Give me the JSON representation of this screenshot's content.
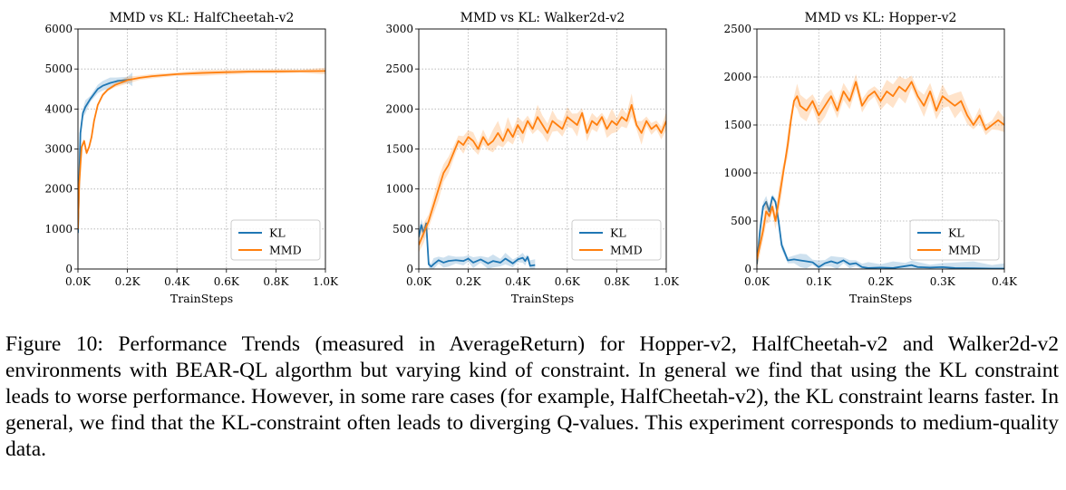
{
  "caption": "Figure 10: Performance Trends (measured in AverageReturn) for Hopper-v2, HalfCheetah-v2 and Walker2d-v2 environments with BEAR-QL algorthm but varying kind of constraint. In general we find that using the KL constraint leads to worse performance. However, in some rare cases (for example, HalfCheetah-v2), the KL constraint learns faster. In general, we find that the KL-constraint often leads to diverging Q-values. This experiment corresponds to medium-quality data.",
  "colors": {
    "kl": "#1f77b4",
    "mmd": "#ff7f0e"
  },
  "chart_data": [
    {
      "type": "line",
      "title": "MMD vs KL: HalfCheetah-v2",
      "xlabel": "TrainSteps",
      "ylabel": "",
      "xlim": [
        0,
        1.0
      ],
      "ylim": [
        0,
        6000
      ],
      "xticks": [
        0,
        0.2,
        0.4,
        0.6,
        0.8,
        1.0
      ],
      "xtick_labels": [
        "0.0K",
        "0.2K",
        "0.4K",
        "0.6K",
        "0.8K",
        "1.0K"
      ],
      "yticks": [
        0,
        1000,
        2000,
        3000,
        4000,
        5000,
        6000
      ],
      "ytick_labels": [
        "0",
        "1000",
        "2000",
        "3000",
        "4000",
        "5000",
        "6000"
      ],
      "grid": true,
      "legend": "lower-right",
      "series": [
        {
          "name": "KL",
          "color": "#1f77b4",
          "x": [
            0,
            0.005,
            0.01,
            0.02,
            0.03,
            0.05,
            0.08,
            0.1,
            0.13,
            0.16,
            0.2,
            0.22
          ],
          "y": [
            900,
            2200,
            3400,
            3900,
            4050,
            4250,
            4500,
            4580,
            4650,
            4700,
            4730,
            4740
          ]
        },
        {
          "name": "MMD",
          "color": "#ff7f0e",
          "x": [
            0,
            0.005,
            0.01,
            0.015,
            0.025,
            0.035,
            0.045,
            0.055,
            0.065,
            0.08,
            0.1,
            0.12,
            0.15,
            0.2,
            0.25,
            0.3,
            0.4,
            0.5,
            0.6,
            0.7,
            0.8,
            0.9,
            1.0
          ],
          "y": [
            1000,
            2100,
            2600,
            3050,
            3200,
            2900,
            3050,
            3300,
            3700,
            4100,
            4350,
            4480,
            4600,
            4720,
            4780,
            4820,
            4870,
            4900,
            4920,
            4935,
            4940,
            4945,
            4950
          ]
        }
      ]
    },
    {
      "type": "line",
      "title": "MMD vs KL: Walker2d-v2",
      "xlabel": "TrainSteps",
      "ylabel": "",
      "xlim": [
        0,
        1.0
      ],
      "ylim": [
        0,
        3000
      ],
      "xticks": [
        0,
        0.2,
        0.4,
        0.6,
        0.8,
        1.0
      ],
      "xtick_labels": [
        "0.0K",
        "0.2K",
        "0.4K",
        "0.6K",
        "0.8K",
        "1.0K"
      ],
      "yticks": [
        0,
        500,
        1000,
        1500,
        2000,
        2500,
        3000
      ],
      "ytick_labels": [
        "0",
        "500",
        "1000",
        "1500",
        "2000",
        "2500",
        "3000"
      ],
      "grid": true,
      "legend": "lower-right",
      "series": [
        {
          "name": "KL",
          "color": "#1f77b4",
          "x": [
            0,
            0.01,
            0.02,
            0.03,
            0.04,
            0.05,
            0.06,
            0.08,
            0.1,
            0.12,
            0.15,
            0.18,
            0.2,
            0.22,
            0.25,
            0.28,
            0.3,
            0.33,
            0.35,
            0.38,
            0.4,
            0.42,
            0.43,
            0.44,
            0.45,
            0.47
          ],
          "y": [
            400,
            550,
            450,
            570,
            60,
            30,
            60,
            110,
            80,
            100,
            110,
            100,
            130,
            80,
            120,
            70,
            100,
            80,
            130,
            70,
            120,
            140,
            100,
            150,
            40,
            50
          ]
        },
        {
          "name": "MMD",
          "color": "#ff7f0e",
          "x": [
            0,
            0.02,
            0.04,
            0.06,
            0.08,
            0.1,
            0.12,
            0.14,
            0.16,
            0.18,
            0.2,
            0.22,
            0.24,
            0.26,
            0.28,
            0.3,
            0.32,
            0.34,
            0.36,
            0.38,
            0.4,
            0.42,
            0.44,
            0.46,
            0.48,
            0.5,
            0.52,
            0.54,
            0.56,
            0.58,
            0.6,
            0.62,
            0.64,
            0.66,
            0.68,
            0.7,
            0.72,
            0.74,
            0.76,
            0.78,
            0.8,
            0.82,
            0.84,
            0.86,
            0.88,
            0.9,
            0.92,
            0.94,
            0.96,
            0.98,
            1.0
          ],
          "y": [
            300,
            450,
            600,
            800,
            1000,
            1200,
            1300,
            1450,
            1600,
            1550,
            1650,
            1600,
            1500,
            1650,
            1550,
            1600,
            1700,
            1600,
            1750,
            1650,
            1800,
            1700,
            1850,
            1750,
            1900,
            1800,
            1700,
            1850,
            1800,
            1750,
            1900,
            1850,
            1800,
            1950,
            1700,
            1850,
            1800,
            1900,
            1750,
            1850,
            1800,
            1900,
            1850,
            2050,
            1800,
            1700,
            1850,
            1750,
            1800,
            1700,
            1850
          ]
        }
      ]
    },
    {
      "type": "line",
      "title": "MMD vs KL: Hopper-v2",
      "xlabel": "TrainSteps",
      "ylabel": "",
      "xlim": [
        0,
        0.4
      ],
      "ylim": [
        0,
        2500
      ],
      "xticks": [
        0,
        0.1,
        0.2,
        0.3,
        0.4
      ],
      "xtick_labels": [
        "0.0K",
        "0.1K",
        "0.2K",
        "0.3K",
        "0.4K"
      ],
      "yticks": [
        0,
        500,
        1000,
        1500,
        2000,
        2500
      ],
      "ytick_labels": [
        "0",
        "500",
        "1000",
        "1500",
        "2000",
        "2500"
      ],
      "grid": true,
      "legend": "lower-right",
      "series": [
        {
          "name": "KL",
          "color": "#1f77b4",
          "x": [
            0,
            0.005,
            0.01,
            0.015,
            0.02,
            0.025,
            0.03,
            0.035,
            0.04,
            0.05,
            0.06,
            0.07,
            0.08,
            0.09,
            0.1,
            0.11,
            0.12,
            0.13,
            0.14,
            0.15,
            0.16,
            0.17,
            0.18,
            0.2,
            0.22,
            0.24,
            0.25,
            0.26,
            0.28,
            0.3,
            0.32,
            0.35,
            0.38,
            0.4
          ],
          "y": [
            50,
            400,
            650,
            700,
            600,
            750,
            700,
            500,
            250,
            90,
            100,
            90,
            80,
            70,
            20,
            60,
            80,
            60,
            90,
            50,
            60,
            20,
            10,
            15,
            10,
            30,
            40,
            20,
            15,
            20,
            10,
            8,
            5,
            5
          ]
        },
        {
          "name": "MMD",
          "color": "#ff7f0e",
          "x": [
            0,
            0.01,
            0.015,
            0.02,
            0.025,
            0.03,
            0.035,
            0.04,
            0.045,
            0.05,
            0.055,
            0.06,
            0.065,
            0.07,
            0.08,
            0.09,
            0.1,
            0.11,
            0.12,
            0.13,
            0.14,
            0.15,
            0.16,
            0.17,
            0.18,
            0.19,
            0.2,
            0.21,
            0.22,
            0.23,
            0.24,
            0.25,
            0.26,
            0.27,
            0.28,
            0.29,
            0.3,
            0.31,
            0.32,
            0.33,
            0.34,
            0.35,
            0.36,
            0.37,
            0.38,
            0.39,
            0.4
          ],
          "y": [
            100,
            400,
            600,
            550,
            650,
            500,
            700,
            900,
            1100,
            1300,
            1550,
            1750,
            1800,
            1700,
            1650,
            1750,
            1600,
            1700,
            1800,
            1650,
            1850,
            1750,
            1950,
            1700,
            1800,
            1850,
            1750,
            1850,
            1800,
            1900,
            1850,
            1950,
            1800,
            1700,
            1850,
            1650,
            1800,
            1750,
            1700,
            1750,
            1600,
            1500,
            1600,
            1450,
            1500,
            1550,
            1500
          ]
        }
      ]
    }
  ]
}
